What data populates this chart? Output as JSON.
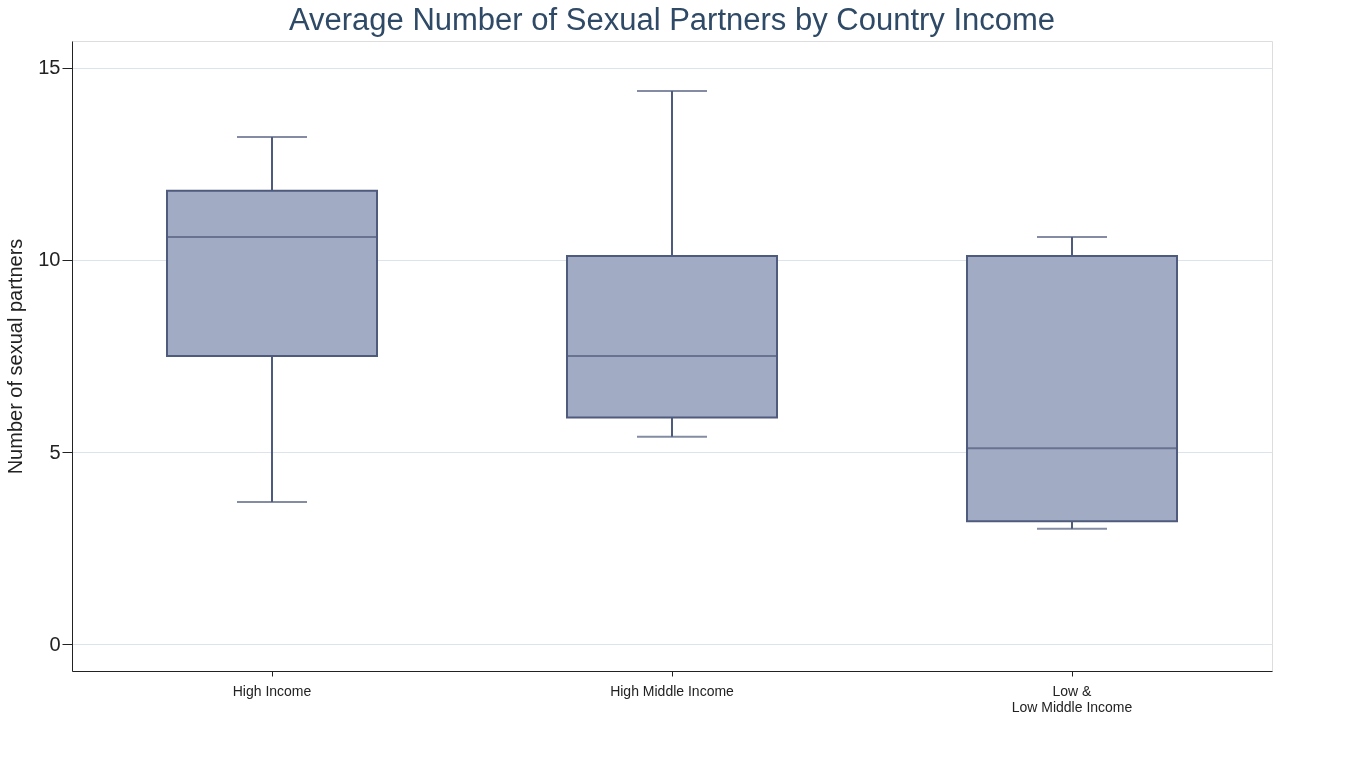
{
  "chart_data": {
    "type": "box",
    "title": "Average Number of Sexual Partners by Country Income",
    "ylabel": "Number of sexual partners",
    "categories": [
      "High Income",
      "High Middle Income",
      "Low &\nLow Middle Income"
    ],
    "boxes": [
      {
        "low": 3.7,
        "q1": 7.5,
        "median": 10.6,
        "q3": 11.8,
        "high": 13.2
      },
      {
        "low": 5.4,
        "q1": 5.9,
        "median": 7.5,
        "q3": 10.1,
        "high": 14.4
      },
      {
        "low": 3.0,
        "q1": 3.2,
        "median": 5.1,
        "q3": 10.1,
        "high": 10.6
      }
    ],
    "color": "#a2abc4",
    "ylim": [
      -0.7,
      15.7
    ],
    "yticks": [
      0,
      5,
      10,
      15
    ],
    "grid": "y"
  }
}
